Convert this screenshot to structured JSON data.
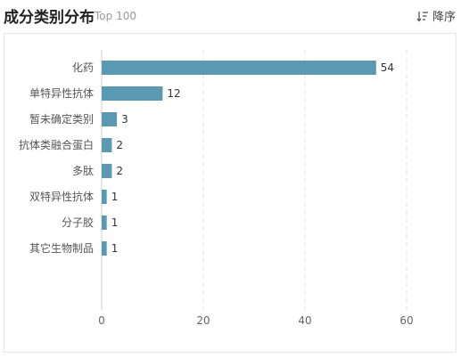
{
  "header": {
    "title": "成分类别分布",
    "subtitle": "Top 100",
    "sort_label": "降序",
    "sort_icon": "sort-descending-icon"
  },
  "chart_data": {
    "type": "bar",
    "orientation": "horizontal",
    "categories": [
      "化药",
      "单特异性抗体",
      "暂未确定类别",
      "抗体类融合蛋白",
      "多肽",
      "双特异性抗体",
      "分子胶",
      "其它生物制品"
    ],
    "values": [
      54,
      12,
      3,
      2,
      2,
      1,
      1,
      1
    ],
    "x_ticks": [
      0,
      20,
      40,
      60
    ],
    "xlim": [
      0,
      60
    ],
    "grid": true,
    "bar_color": "#5b98b2"
  }
}
